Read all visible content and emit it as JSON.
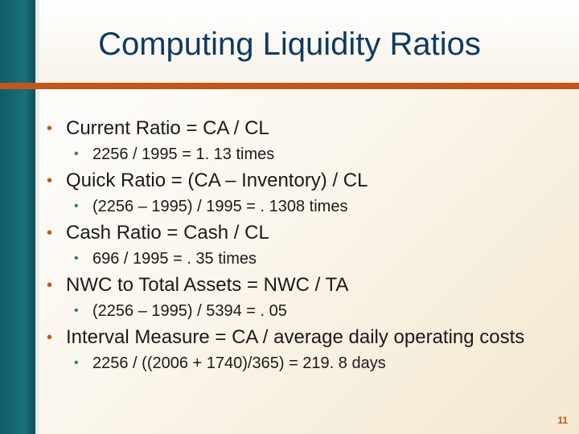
{
  "slide": {
    "title": "Computing Liquidity Ratios",
    "page_number": "11",
    "items": [
      {
        "text": "Current Ratio = CA / CL",
        "sub": "2256 / 1995 = 1. 13 times"
      },
      {
        "text": "Quick Ratio = (CA – Inventory) / CL",
        "sub": "(2256 – 1995) / 1995 = . 1308 times"
      },
      {
        "text": "Cash Ratio = Cash / CL",
        "sub": "696 / 1995 = . 35 times"
      },
      {
        "text": "NWC to Total Assets = NWC / TA",
        "sub": "(2256 – 1995) / 5394 = . 05"
      },
      {
        "text": "Interval Measure = CA / average daily operating costs",
        "sub": "2256 / ((2006 + 1740)/365) = 219. 8 days"
      }
    ]
  },
  "colors": {
    "title": "#0e3a5f",
    "accent": "#c0571b",
    "sidebar": "#1a7079"
  }
}
